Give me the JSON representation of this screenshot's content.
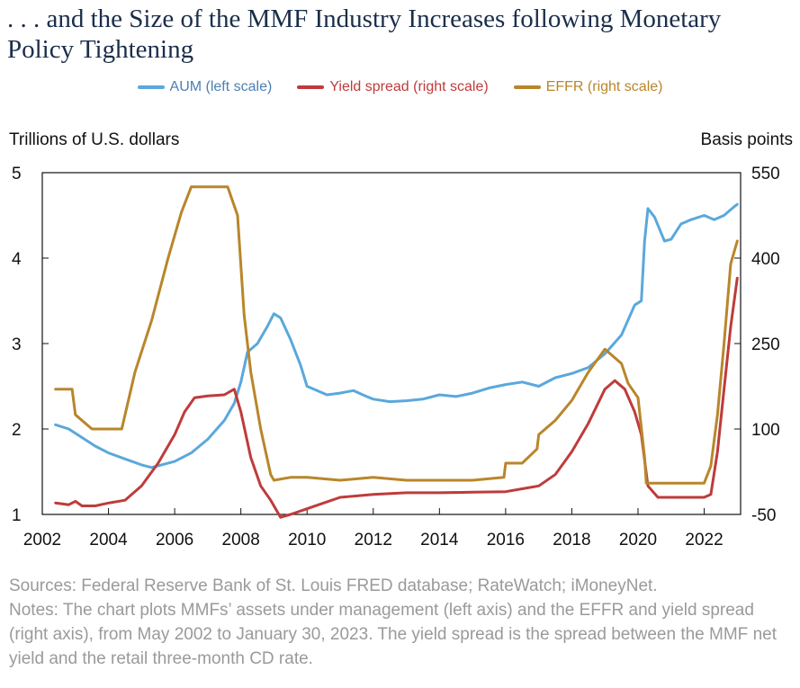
{
  "title": ". . . and the Size of the MMF Industry Increases following Monetary Policy Tightening",
  "sources": "Sources: Federal Reserve Bank of St. Louis FRED database; RateWatch; iMoneyNet.",
  "notes": "Notes: The chart plots MMFs’ assets under management (left axis) and the EFFR and yield spread (right axis), from May 2002 to January 30, 2023. The yield spread is the spread between the MMF net yield and the retail three-month CD rate.",
  "chart_data": {
    "type": "line",
    "ylabel_left": "Trillions of U.S. dollars",
    "ylabel_right": "Basis points",
    "xlim": [
      2002,
      2023.1
    ],
    "ylim_left": [
      1,
      5
    ],
    "ylim_right": [
      -50,
      550
    ],
    "xticks": [
      2002,
      2004,
      2006,
      2008,
      2010,
      2012,
      2014,
      2016,
      2018,
      2020,
      2022
    ],
    "yticks_left": [
      1,
      2,
      3,
      4,
      5
    ],
    "yticks_right": [
      -50,
      100,
      250,
      400,
      550
    ],
    "grid": false,
    "legend_position": "top-center",
    "series": [
      {
        "name": "AUM (left scale)",
        "axis": "left",
        "color": "#5aa8dc",
        "x": [
          2002.4,
          2002.8,
          2003.2,
          2003.6,
          2004.0,
          2004.5,
          2005.0,
          2005.3,
          2005.6,
          2006.0,
          2006.5,
          2007.0,
          2007.5,
          2007.8,
          2008.0,
          2008.2,
          2008.5,
          2008.8,
          2009.0,
          2009.2,
          2009.5,
          2009.8,
          2010.0,
          2010.3,
          2010.6,
          2011.0,
          2011.4,
          2011.8,
          2012.0,
          2012.5,
          2013.0,
          2013.5,
          2014.0,
          2014.5,
          2015.0,
          2015.5,
          2016.0,
          2016.5,
          2017.0,
          2017.5,
          2018.0,
          2018.5,
          2019.0,
          2019.5,
          2019.9,
          2020.1,
          2020.2,
          2020.3,
          2020.5,
          2020.8,
          2021.0,
          2021.3,
          2021.6,
          2022.0,
          2022.3,
          2022.6,
          2022.9,
          2023.0
        ],
        "y": [
          2.05,
          2.0,
          1.9,
          1.8,
          1.72,
          1.65,
          1.58,
          1.55,
          1.58,
          1.62,
          1.72,
          1.88,
          2.1,
          2.3,
          2.55,
          2.9,
          3.0,
          3.2,
          3.35,
          3.3,
          3.05,
          2.75,
          2.5,
          2.45,
          2.4,
          2.42,
          2.45,
          2.38,
          2.35,
          2.32,
          2.33,
          2.35,
          2.4,
          2.38,
          2.42,
          2.48,
          2.52,
          2.55,
          2.5,
          2.6,
          2.65,
          2.72,
          2.88,
          3.1,
          3.45,
          3.5,
          4.2,
          4.58,
          4.48,
          4.2,
          4.22,
          4.4,
          4.45,
          4.5,
          4.45,
          4.5,
          4.6,
          4.63
        ]
      },
      {
        "name": "Yield spread (right scale)",
        "axis": "right",
        "color": "#bf3b3b",
        "x": [
          2002.4,
          2002.8,
          2003.0,
          2003.2,
          2003.6,
          2004.0,
          2004.5,
          2005.0,
          2005.5,
          2006.0,
          2006.3,
          2006.6,
          2007.0,
          2007.5,
          2007.8,
          2008.0,
          2008.3,
          2008.6,
          2008.9,
          2009.2,
          2009.5,
          2010.0,
          2010.5,
          2011.0,
          2012.0,
          2013.0,
          2014.0,
          2015.0,
          2016.0,
          2016.5,
          2017.0,
          2017.5,
          2018.0,
          2018.5,
          2019.0,
          2019.3,
          2019.6,
          2019.9,
          2020.1,
          2020.3,
          2020.6,
          2021.0,
          2021.5,
          2022.0,
          2022.2,
          2022.4,
          2022.6,
          2022.8,
          2023.0
        ],
        "y": [
          -30,
          -33,
          -27,
          -35,
          -35,
          -30,
          -25,
          0,
          40,
          90,
          130,
          155,
          158,
          160,
          170,
          130,
          50,
          0,
          -25,
          -55,
          -50,
          -40,
          -30,
          -20,
          -15,
          -12,
          -12,
          -11,
          -10,
          -5,
          0,
          20,
          60,
          110,
          170,
          185,
          170,
          130,
          90,
          0,
          -20,
          -20,
          -20,
          -20,
          -15,
          60,
          170,
          280,
          365
        ]
      },
      {
        "name": "EFFR (right scale)",
        "axis": "right",
        "color": "#b8862b",
        "x": [
          2002.4,
          2002.9,
          2003.0,
          2003.5,
          2004.4,
          2004.8,
          2005.3,
          2005.8,
          2006.2,
          2006.5,
          2007.0,
          2007.6,
          2007.9,
          2008.1,
          2008.3,
          2008.6,
          2008.9,
          2009.0,
          2009.5,
          2010.0,
          2011.0,
          2012.0,
          2013.0,
          2014.0,
          2015.0,
          2015.95,
          2016.0,
          2016.5,
          2016.95,
          2017.0,
          2017.5,
          2018.0,
          2018.5,
          2019.0,
          2019.5,
          2019.7,
          2020.0,
          2020.2,
          2020.25,
          2021.0,
          2022.0,
          2022.2,
          2022.4,
          2022.6,
          2022.8,
          2023.0
        ],
        "y": [
          170,
          170,
          125,
          100,
          100,
          200,
          290,
          400,
          480,
          525,
          525,
          525,
          475,
          300,
          200,
          100,
          20,
          10,
          15,
          15,
          10,
          15,
          10,
          10,
          10,
          15,
          40,
          40,
          65,
          90,
          115,
          150,
          200,
          240,
          215,
          180,
          155,
          50,
          5,
          5,
          5,
          35,
          125,
          250,
          390,
          430
        ]
      }
    ]
  }
}
